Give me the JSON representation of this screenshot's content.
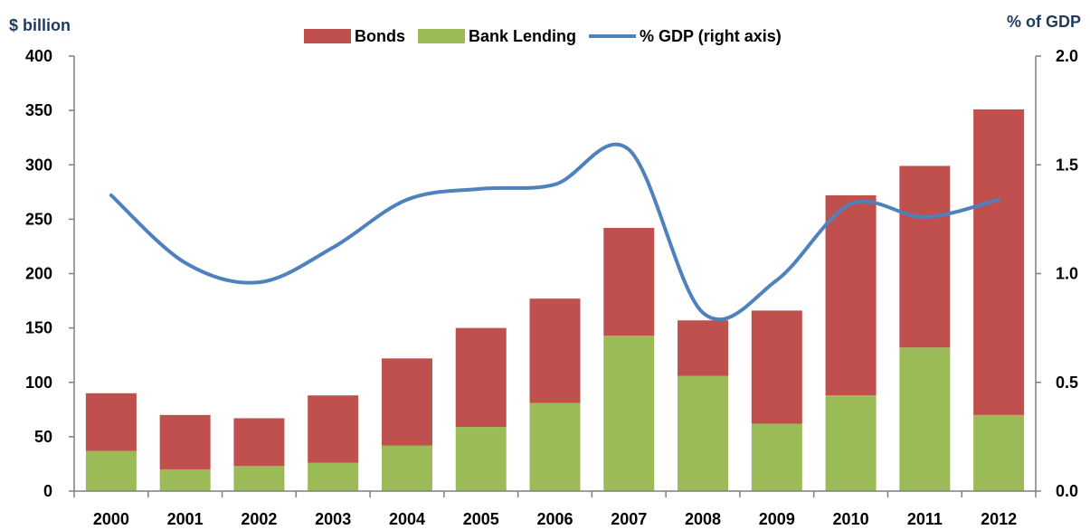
{
  "chart_data": {
    "type": "bar",
    "stacked": true,
    "categories": [
      "2000",
      "2001",
      "2002",
      "2003",
      "2004",
      "2005",
      "2006",
      "2007",
      "2008",
      "2009",
      "2010",
      "2011",
      "2012"
    ],
    "series": [
      {
        "name": "Bank Lending",
        "type": "bar",
        "axis": "left",
        "color": "#9bbb59",
        "values": [
          37,
          20,
          23,
          26,
          42,
          59,
          81,
          143,
          106,
          62,
          88,
          132,
          70
        ]
      },
      {
        "name": "Bonds",
        "type": "bar",
        "axis": "left",
        "color": "#c0504d",
        "values": [
          53,
          50,
          44,
          62,
          80,
          91,
          96,
          99,
          51,
          104,
          184,
          167,
          281
        ]
      },
      {
        "name": "% GDP (right axis)",
        "type": "line",
        "axis": "right",
        "color": "#4f81bd",
        "values": [
          1.36,
          1.05,
          0.96,
          1.12,
          1.34,
          1.39,
          1.41,
          1.57,
          0.82,
          0.97,
          1.32,
          1.26,
          1.34
        ]
      }
    ],
    "legend_order": [
      "Bonds",
      "Bank Lending",
      "% GDP (right axis)"
    ],
    "y_left": {
      "label": "$ billion",
      "min": 0,
      "max": 400,
      "ticks": [
        "0",
        "50",
        "100",
        "150",
        "200",
        "250",
        "300",
        "350",
        "400"
      ]
    },
    "y_right": {
      "label": "% of GDP",
      "min": 0,
      "max": 2,
      "ticks": [
        "0.0",
        "0.5",
        "1.0",
        "1.5",
        "2.0"
      ]
    },
    "legend_position": "top-center",
    "grid": false
  }
}
